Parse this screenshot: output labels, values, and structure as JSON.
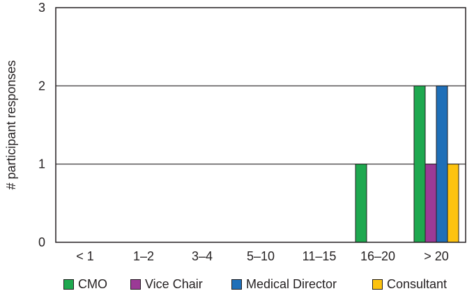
{
  "chart_data": {
    "type": "bar",
    "ylabel": "# participant responses",
    "xlabel": "",
    "title": "",
    "ylim": [
      0,
      3
    ],
    "yticks": [
      0,
      1,
      2,
      3
    ],
    "grid": true,
    "legend_position": "bottom",
    "categories": [
      "< 1",
      "1–2",
      "3–4",
      "5–10",
      "11–15",
      "16–20",
      "> 20"
    ],
    "series": [
      {
        "name": "CMO",
        "color": "#1ea84f",
        "values": [
          0,
          0,
          0,
          0,
          0,
          1,
          2
        ]
      },
      {
        "name": "Vice Chair",
        "color": "#9b3a96",
        "values": [
          0,
          0,
          0,
          0,
          0,
          0,
          1
        ]
      },
      {
        "name": "Medical Director",
        "color": "#1f6fb8",
        "values": [
          0,
          0,
          0,
          0,
          0,
          0,
          2
        ]
      },
      {
        "name": "Consultant",
        "color": "#fdc30f",
        "values": [
          0,
          0,
          0,
          0,
          0,
          0,
          1
        ]
      }
    ]
  }
}
